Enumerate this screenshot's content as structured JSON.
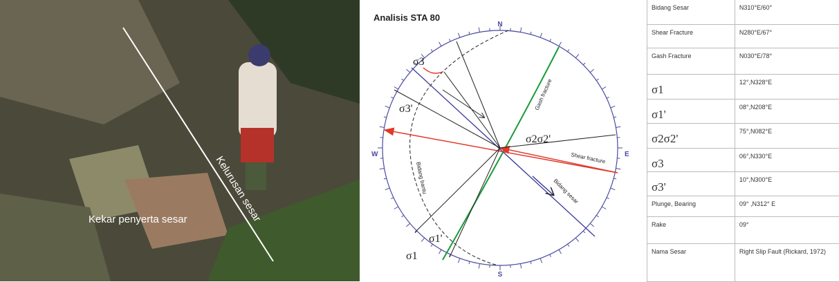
{
  "photo": {
    "labels": [
      "Kekar penyerta sesar",
      "Kelurusan sesar"
    ]
  },
  "diagram": {
    "title": "Analisis STA 80",
    "directions": {
      "n": "N",
      "e": "E",
      "s": "S",
      "w": "W"
    },
    "features": [
      "Gash fracture",
      "Shear fracture",
      "Bidang sesar",
      "Bidang bantu"
    ],
    "stress_labels": [
      "σ3",
      "σ3'",
      "σ2σ2'",
      "σ1",
      "σ1'"
    ]
  },
  "table": {
    "rows": [
      [
        "Bidang Sesar",
        "N310°E/60°"
      ],
      [
        "Shear Fracture",
        "N280°E/67°"
      ],
      [
        "Gash Fracture",
        "N030°E/78°"
      ],
      [
        "σ1",
        "12°,N328°E"
      ],
      [
        "σ1'",
        "08°,N208°E"
      ],
      [
        "σ2σ2'",
        "75°,N082°E"
      ],
      [
        "σ3",
        "06°,N330°E"
      ],
      [
        "σ3'",
        "10°,N300°E"
      ],
      [
        "Plunge, Bearing",
        "09° ,N312° E"
      ],
      [
        "Rake",
        "09°"
      ],
      [
        "Nama Sesar",
        "Right Slip Fault (Rickard, 1972)"
      ]
    ]
  }
}
